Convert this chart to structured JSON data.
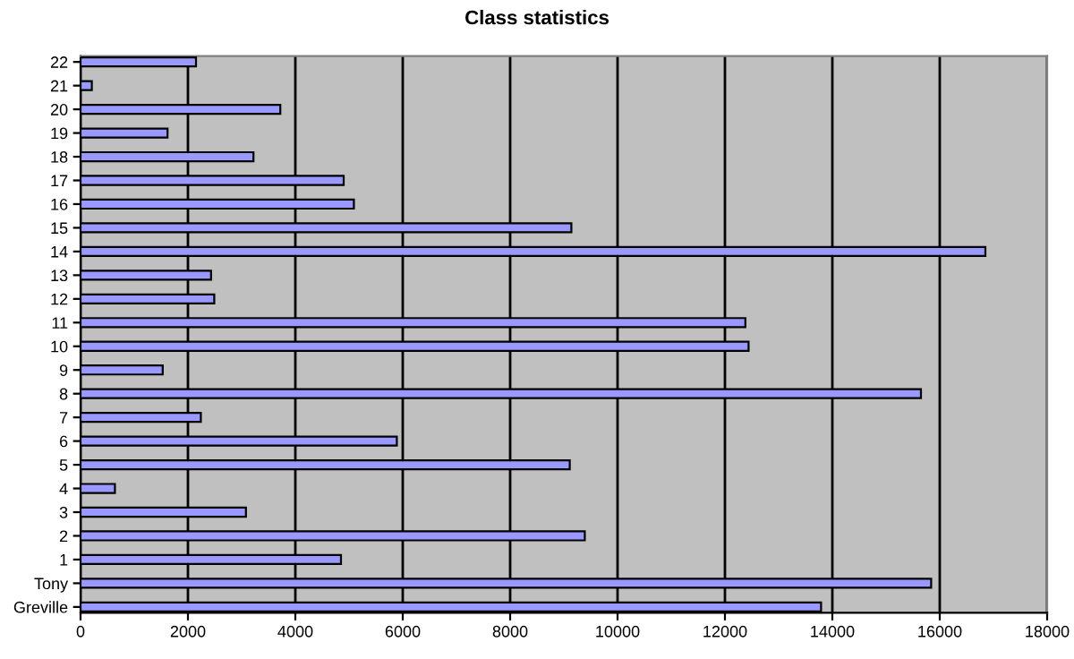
{
  "chart_data": {
    "type": "bar",
    "orientation": "horizontal",
    "title": "Class statistics",
    "categories": [
      "22",
      "21",
      "20",
      "19",
      "18",
      "17",
      "16",
      "15",
      "14",
      "13",
      "12",
      "11",
      "10",
      "9",
      "8",
      "7",
      "6",
      "5",
      "4",
      "3",
      "2",
      "1",
      "Tony",
      "Greville"
    ],
    "values": [
      2150,
      210,
      3720,
      1620,
      3220,
      4900,
      5090,
      9140,
      16850,
      2430,
      2490,
      12380,
      12440,
      1530,
      15650,
      2240,
      5890,
      9110,
      640,
      3080,
      9390,
      4850,
      15840,
      13790
    ],
    "color": "#9999ff",
    "xlim": [
      0,
      18000
    ],
    "xticks": [
      0,
      2000,
      4000,
      6000,
      8000,
      10000,
      12000,
      14000,
      16000,
      18000
    ],
    "grid": "x",
    "legend": false
  }
}
